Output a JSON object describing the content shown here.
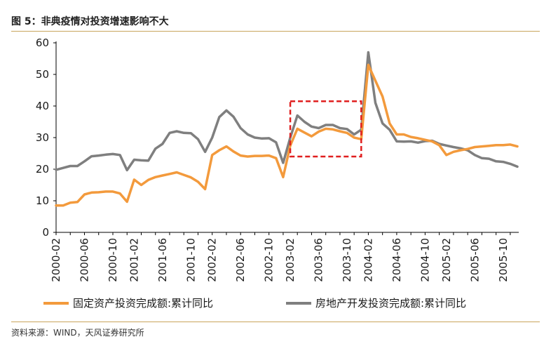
{
  "header": {
    "title": "图 5：非典疫情对投资增速影响不大"
  },
  "footer": {
    "source": "资料来源：WIND，天风证券研究所"
  },
  "colors": {
    "fixed_asset": "#f39a3c",
    "real_estate": "#7f7f7f",
    "highlight_box": "#e01f1f",
    "rule": "#c9a55c"
  },
  "chart_data": {
    "type": "line",
    "title": "",
    "xlabel": "",
    "ylabel": "",
    "ylim": [
      0,
      60
    ],
    "yticks": [
      0,
      10,
      20,
      30,
      40,
      50,
      60
    ],
    "x_tick_labels": [
      "2000-02",
      "2000-06",
      "2000-10",
      "2001-02",
      "2001-06",
      "2001-10",
      "2002-02",
      "2002-06",
      "2002-10",
      "2003-02",
      "2003-06",
      "2003-10",
      "2004-02",
      "2004-06",
      "2004-10",
      "2005-02",
      "2005-06",
      "2005-10"
    ],
    "legend_position": "bottom",
    "grid": false,
    "x": [
      "2000-02",
      "2000-03",
      "2000-04",
      "2000-05",
      "2000-06",
      "2000-07",
      "2000-08",
      "2000-09",
      "2000-10",
      "2000-11",
      "2000-12",
      "2001-02",
      "2001-03",
      "2001-04",
      "2001-05",
      "2001-06",
      "2001-07",
      "2001-08",
      "2001-09",
      "2001-10",
      "2001-11",
      "2001-12",
      "2002-02",
      "2002-03",
      "2002-04",
      "2002-05",
      "2002-06",
      "2002-07",
      "2002-08",
      "2002-09",
      "2002-10",
      "2002-11",
      "2002-12",
      "2003-02",
      "2003-03",
      "2003-04",
      "2003-05",
      "2003-06",
      "2003-07",
      "2003-08",
      "2003-09",
      "2003-10",
      "2003-11",
      "2003-12",
      "2004-02",
      "2004-03",
      "2004-04",
      "2004-05",
      "2004-06",
      "2004-07",
      "2004-08",
      "2004-09",
      "2004-10",
      "2004-11",
      "2004-12",
      "2005-02",
      "2005-03",
      "2005-04",
      "2005-05",
      "2005-06",
      "2005-07",
      "2005-08",
      "2005-09",
      "2005-10",
      "2005-11",
      "2005-12"
    ],
    "series": [
      {
        "name": "固定资产投资完成额:累计同比",
        "values": [
          8.5,
          8.5,
          9.4,
          9.6,
          12.0,
          12.6,
          12.7,
          12.9,
          12.9,
          12.3,
          9.7,
          16.7,
          15.0,
          16.6,
          17.5,
          18.0,
          18.5,
          19.0,
          18.2,
          17.4,
          16.0,
          13.7,
          24.5,
          26.0,
          27.2,
          25.6,
          24.3,
          24.0,
          24.2,
          24.2,
          24.3,
          23.5,
          17.5,
          27.5,
          32.8,
          31.6,
          30.4,
          31.9,
          32.8,
          32.6,
          32.0,
          31.5,
          30.0,
          29.5,
          53.0,
          48.0,
          43.0,
          34.5,
          31.0,
          31.0,
          30.2,
          29.8,
          29.3,
          28.8,
          27.6,
          24.5,
          25.5,
          26.0,
          26.4,
          27.0,
          27.2,
          27.4,
          27.6,
          27.6,
          27.8,
          27.2
        ]
      },
      {
        "name": "房地产开发投资完成额:累计同比",
        "values": [
          19.8,
          20.4,
          21.0,
          21.0,
          22.5,
          24.1,
          24.3,
          24.6,
          24.8,
          24.5,
          19.7,
          23.0,
          22.8,
          22.7,
          26.5,
          28.0,
          31.5,
          32.0,
          31.5,
          31.4,
          29.5,
          25.5,
          30.0,
          36.5,
          38.6,
          36.6,
          33.0,
          31.0,
          30.0,
          29.7,
          29.8,
          28.5,
          22.0,
          30.0,
          37.0,
          35.0,
          33.5,
          33.0,
          34.0,
          34.0,
          33.0,
          32.7,
          31.0,
          32.5,
          57.0,
          41.0,
          34.5,
          32.5,
          28.8,
          28.7,
          28.8,
          28.4,
          28.9,
          29.0,
          28.0,
          27.5,
          27.0,
          26.6,
          26.0,
          24.5,
          23.5,
          23.3,
          22.5,
          22.3,
          21.7,
          20.8
        ]
      }
    ],
    "highlight": {
      "x_start": "2003-02",
      "x_end": "2003-12",
      "y_min": 24,
      "y_max": 41.5
    }
  }
}
